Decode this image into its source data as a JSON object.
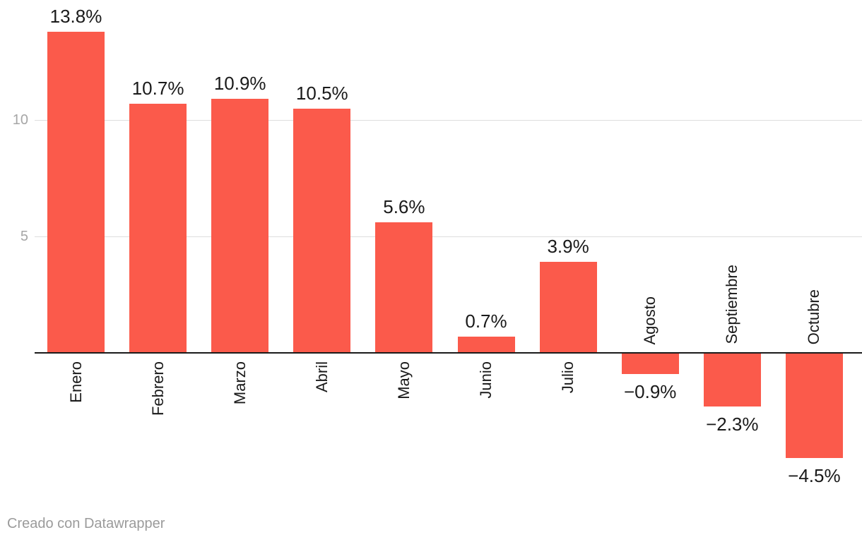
{
  "chart_data": {
    "type": "bar",
    "categories": [
      "Enero",
      "Febrero",
      "Marzo",
      "Abril",
      "Mayo",
      "Junio",
      "Julio",
      "Agosto",
      "Septiembre",
      "Octubre"
    ],
    "values": [
      13.8,
      10.7,
      10.9,
      10.5,
      5.6,
      0.7,
      3.9,
      -0.9,
      -2.3,
      -4.5
    ],
    "value_labels": [
      "13.8%",
      "10.7%",
      "10.9%",
      "10.5%",
      "5.6%",
      "0.7%",
      "3.9%",
      "−0.9%",
      "−2.3%",
      "−4.5%"
    ],
    "title": "",
    "xlabel": "",
    "ylabel": "",
    "y_ticks": [
      10,
      5
    ],
    "y_tick_labels": [
      "10",
      "5"
    ],
    "ylim": [
      -5.6,
      15.2
    ],
    "grid": "horizontal-only",
    "legend": "none",
    "bar_color": "#fb5a4b",
    "grid_color": "#dedede",
    "axis_line_color": "#1a1a1a",
    "tick_label_color": "#a6a6a6",
    "data_label_color": "#1a1a1a",
    "category_label_color": "#1a1a1a"
  },
  "footer": {
    "credit": "Creado con Datawrapper",
    "credit_color": "#9b9b9b"
  }
}
